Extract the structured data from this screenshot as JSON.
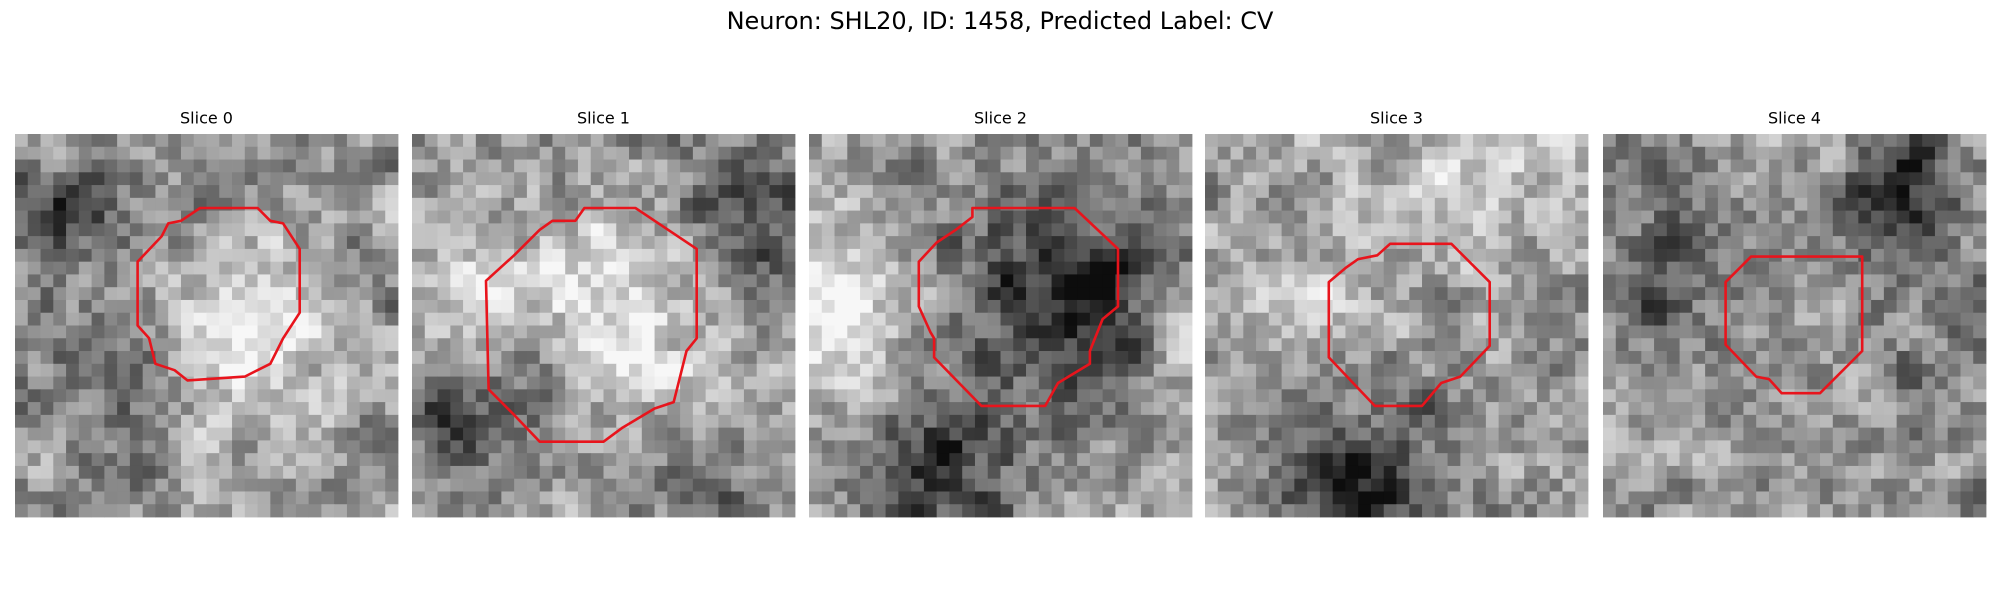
{
  "header": {
    "title": "Neuron: SHL20, ID: 1458, Predicted Label: CV"
  },
  "panels": [
    {
      "title": "Slice 0"
    },
    {
      "title": "Slice 1"
    },
    {
      "title": "Slice 2"
    },
    {
      "title": "Slice 3"
    },
    {
      "title": "Slice 4"
    }
  ]
}
